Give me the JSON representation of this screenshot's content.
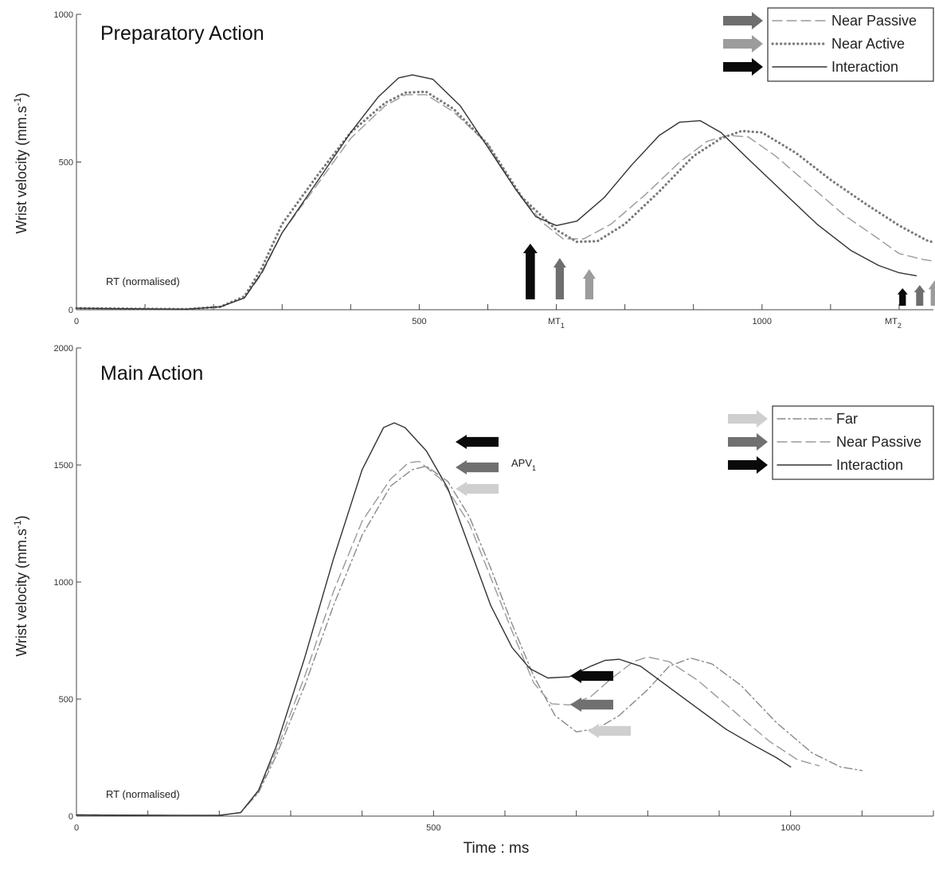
{
  "figure": {
    "xlabel": "Time : ms"
  },
  "chart_data": [
    {
      "type": "line",
      "title": "Preparatory Action",
      "xlabel": "",
      "ylabel": "Wrist velocity  (mm.s-1)",
      "ylim": [
        0,
        1000
      ],
      "y_ticks": [
        0,
        500,
        1000
      ],
      "xlim": [
        0,
        1250
      ],
      "x_ticks": [
        0,
        500,
        1000
      ],
      "special_x_labels": [
        {
          "value": 700,
          "label": "MT1"
        },
        {
          "value": 1190,
          "label": "MT2"
        }
      ],
      "annotations": [
        {
          "text": "RT (normalised)"
        }
      ],
      "legend": {
        "position": "top-right"
      },
      "series": [
        {
          "name": "Near Passive",
          "style": "dashed",
          "color": "#9a9a9a",
          "arrow_color": "#6e6e6e",
          "points": [
            [
              0,
              5
            ],
            [
              100,
              3
            ],
            [
              160,
              2
            ],
            [
              210,
              10
            ],
            [
              245,
              40
            ],
            [
              270,
              120
            ],
            [
              300,
              260
            ],
            [
              350,
              420
            ],
            [
              400,
              580
            ],
            [
              450,
              690
            ],
            [
              480,
              728
            ],
            [
              510,
              728
            ],
            [
              550,
              670
            ],
            [
              600,
              560
            ],
            [
              640,
              410
            ],
            [
              680,
              295
            ],
            [
              710,
              240
            ],
            [
              740,
              240
            ],
            [
              780,
              290
            ],
            [
              830,
              390
            ],
            [
              880,
              500
            ],
            [
              920,
              570
            ],
            [
              950,
              590
            ],
            [
              980,
              585
            ],
            [
              1020,
              520
            ],
            [
              1070,
              420
            ],
            [
              1120,
              320
            ],
            [
              1170,
              240
            ],
            [
              1200,
              190
            ],
            [
              1235,
              170
            ],
            [
              1250,
              165
            ]
          ]
        },
        {
          "name": "Near Active",
          "style": "dotted",
          "color": "#7a7a7a",
          "arrow_color": "#9c9c9c",
          "points": [
            [
              0,
              5
            ],
            [
              100,
              3
            ],
            [
              160,
              2
            ],
            [
              210,
              10
            ],
            [
              245,
              45
            ],
            [
              270,
              140
            ],
            [
              300,
              290
            ],
            [
              350,
              450
            ],
            [
              400,
              600
            ],
            [
              450,
              700
            ],
            [
              480,
              735
            ],
            [
              510,
              738
            ],
            [
              550,
              680
            ],
            [
              600,
              560
            ],
            [
              650,
              380
            ],
            [
              700,
              270
            ],
            [
              730,
              230
            ],
            [
              760,
              232
            ],
            [
              800,
              290
            ],
            [
              850,
              400
            ],
            [
              900,
              520
            ],
            [
              940,
              580
            ],
            [
              970,
              605
            ],
            [
              1000,
              600
            ],
            [
              1050,
              530
            ],
            [
              1100,
              440
            ],
            [
              1150,
              360
            ],
            [
              1200,
              285
            ],
            [
              1240,
              235
            ],
            [
              1250,
              228
            ]
          ]
        },
        {
          "name": "Interaction",
          "style": "solid",
          "color": "#333333",
          "arrow_color": "#0a0a0a",
          "points": [
            [
              0,
              5
            ],
            [
              100,
              3
            ],
            [
              160,
              2
            ],
            [
              210,
              10
            ],
            [
              245,
              40
            ],
            [
              270,
              125
            ],
            [
              300,
              260
            ],
            [
              350,
              430
            ],
            [
              400,
              600
            ],
            [
              440,
              720
            ],
            [
              470,
              785
            ],
            [
              490,
              795
            ],
            [
              520,
              780
            ],
            [
              560,
              690
            ],
            [
              600,
              550
            ],
            [
              640,
              410
            ],
            [
              670,
              315
            ],
            [
              700,
              285
            ],
            [
              730,
              300
            ],
            [
              770,
              380
            ],
            [
              810,
              490
            ],
            [
              850,
              590
            ],
            [
              880,
              635
            ],
            [
              910,
              640
            ],
            [
              940,
              600
            ],
            [
              980,
              510
            ],
            [
              1030,
              400
            ],
            [
              1080,
              290
            ],
            [
              1130,
              200
            ],
            [
              1170,
              150
            ],
            [
              1200,
              125
            ],
            [
              1225,
              115
            ]
          ]
        }
      ],
      "arrows": {
        "mt1": [
          {
            "series": "Interaction",
            "x": 662
          },
          {
            "series": "Near Passive",
            "x": 705
          },
          {
            "series": "Near Active",
            "x": 748
          }
        ],
        "mt2": [
          {
            "series": "Interaction",
            "x": 1205
          },
          {
            "series": "Near Passive",
            "x": 1230
          },
          {
            "series": "Near Active",
            "x": 1252
          }
        ]
      }
    },
    {
      "type": "line",
      "title": "Main Action",
      "xlabel": "Time : ms",
      "ylabel": "Wrist velocity  (mm.s-1)",
      "ylim": [
        0,
        2000
      ],
      "y_ticks": [
        0,
        500,
        1000,
        1500,
        2000
      ],
      "xlim": [
        0,
        1200
      ],
      "x_ticks": [
        0,
        500,
        1000
      ],
      "annotations": [
        {
          "text": "RT (normalised)"
        },
        {
          "text": "APV1"
        }
      ],
      "legend": {
        "position": "top-right"
      },
      "series": [
        {
          "name": "Far",
          "style": "dashdot",
          "color": "#8a8a8a",
          "arrow_color": "#cfcfcf",
          "points": [
            [
              0,
              5
            ],
            [
              150,
              3
            ],
            [
              200,
              3
            ],
            [
              230,
              15
            ],
            [
              255,
              100
            ],
            [
              280,
              260
            ],
            [
              320,
              560
            ],
            [
              360,
              900
            ],
            [
              400,
              1200
            ],
            [
              440,
              1410
            ],
            [
              470,
              1480
            ],
            [
              490,
              1495
            ],
            [
              520,
              1430
            ],
            [
              550,
              1280
            ],
            [
              580,
              1060
            ],
            [
              610,
              820
            ],
            [
              640,
              600
            ],
            [
              670,
              430
            ],
            [
              700,
              360
            ],
            [
              730,
              375
            ],
            [
              760,
              430
            ],
            [
              800,
              540
            ],
            [
              830,
              640
            ],
            [
              860,
              675
            ],
            [
              890,
              650
            ],
            [
              930,
              560
            ],
            [
              980,
              400
            ],
            [
              1030,
              270
            ],
            [
              1070,
              210
            ],
            [
              1100,
              195
            ]
          ]
        },
        {
          "name": "Near Passive",
          "style": "dashed",
          "color": "#9a9a9a",
          "arrow_color": "#707070",
          "points": [
            [
              0,
              5
            ],
            [
              150,
              3
            ],
            [
              200,
              3
            ],
            [
              230,
              15
            ],
            [
              255,
              105
            ],
            [
              280,
              280
            ],
            [
              320,
              600
            ],
            [
              360,
              960
            ],
            [
              400,
              1260
            ],
            [
              440,
              1440
            ],
            [
              465,
              1510
            ],
            [
              480,
              1515
            ],
            [
              510,
              1440
            ],
            [
              550,
              1250
            ],
            [
              580,
              1020
            ],
            [
              610,
              790
            ],
            [
              640,
              570
            ],
            [
              665,
              480
            ],
            [
              690,
              475
            ],
            [
              720,
              510
            ],
            [
              750,
              590
            ],
            [
              780,
              660
            ],
            [
              800,
              680
            ],
            [
              830,
              660
            ],
            [
              870,
              580
            ],
            [
              920,
              450
            ],
            [
              970,
              320
            ],
            [
              1010,
              240
            ],
            [
              1040,
              215
            ]
          ]
        },
        {
          "name": "Interaction",
          "style": "solid",
          "color": "#333333",
          "arrow_color": "#0a0a0a",
          "points": [
            [
              0,
              5
            ],
            [
              150,
              3
            ],
            [
              200,
              3
            ],
            [
              230,
              15
            ],
            [
              255,
              110
            ],
            [
              280,
              300
            ],
            [
              320,
              680
            ],
            [
              360,
              1100
            ],
            [
              400,
              1480
            ],
            [
              430,
              1660
            ],
            [
              445,
              1680
            ],
            [
              460,
              1660
            ],
            [
              490,
              1560
            ],
            [
              520,
              1400
            ],
            [
              550,
              1150
            ],
            [
              580,
              900
            ],
            [
              610,
              720
            ],
            [
              635,
              630
            ],
            [
              660,
              590
            ],
            [
              690,
              595
            ],
            [
              720,
              640
            ],
            [
              740,
              665
            ],
            [
              760,
              670
            ],
            [
              790,
              640
            ],
            [
              830,
              550
            ],
            [
              870,
              460
            ],
            [
              910,
              370
            ],
            [
              950,
              300
            ],
            [
              980,
              250
            ],
            [
              1000,
              210
            ]
          ]
        }
      ]
    }
  ]
}
